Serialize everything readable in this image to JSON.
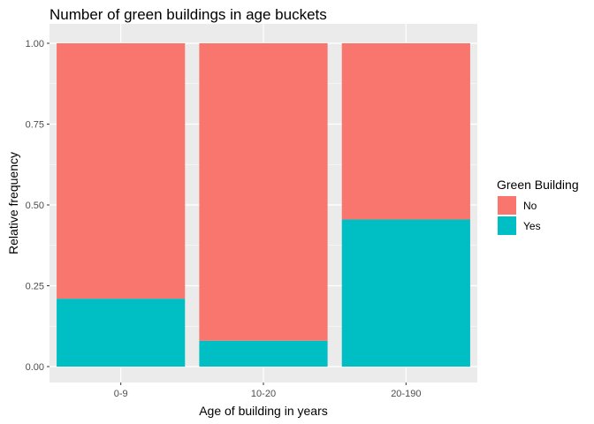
{
  "chart_data": {
    "type": "bar",
    "stacked": true,
    "title": "Number of green buildings in age buckets",
    "xlabel": "Age of building in years",
    "ylabel": "Relative frequency",
    "categories": [
      "0-9",
      "10-20",
      "20-190"
    ],
    "ylim": [
      0,
      1
    ],
    "yticks": [
      "0.00",
      "0.25",
      "0.50",
      "0.75",
      "1.00"
    ],
    "grid": true,
    "legend": {
      "title": "Green Building",
      "position": "right"
    },
    "series": [
      {
        "name": "Yes",
        "color": "#00BFC4",
        "values": [
          0.21,
          0.08,
          0.455
        ]
      },
      {
        "name": "No",
        "color": "#F8766D",
        "values": [
          0.79,
          0.92,
          0.545
        ]
      }
    ],
    "legend_order": [
      "No",
      "Yes"
    ]
  }
}
